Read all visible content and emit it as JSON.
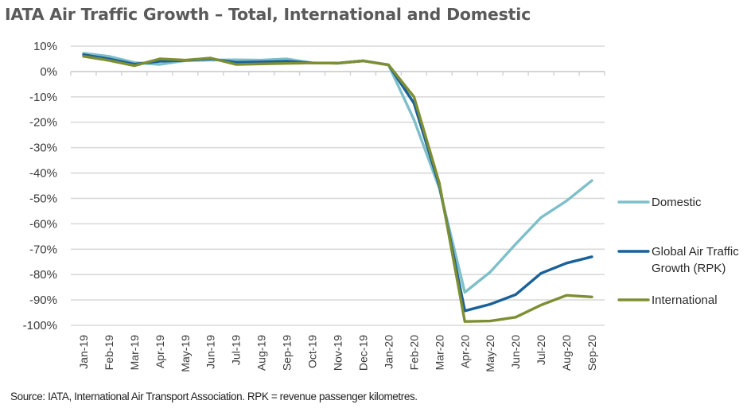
{
  "chart_data": {
    "type": "line",
    "title": "IATA Air Traffic Growth  – Total, International  and Domestic",
    "xlabel": "",
    "ylabel": "",
    "ylim": [
      -100,
      10
    ],
    "yticks": [
      10,
      0,
      -10,
      -20,
      -30,
      -40,
      -50,
      -60,
      -70,
      -80,
      -90,
      -100
    ],
    "ytick_labels": [
      "10%",
      "0%",
      "-10%",
      "-20%",
      "-30%",
      "-40%",
      "-50%",
      "-60%",
      "-70%",
      "-80%",
      "-90%",
      "-100%"
    ],
    "grid": true,
    "legend_position": "right",
    "categories": [
      "Jan-19",
      "Feb-19",
      "Mar-19",
      "Apr-19",
      "May-19",
      "Jun-19",
      "Jul-19",
      "Aug-19",
      "Sep-19",
      "Oct-19",
      "Nov-19",
      "Dec-19",
      "Jan-20",
      "Feb-20",
      "Mar-20",
      "Apr-20",
      "May-20",
      "Jun-20",
      "Jul-20",
      "Aug-20",
      "Sep-20"
    ],
    "series": [
      {
        "name": "Domestic",
        "color": "#7fbfc9",
        "values": [
          7.2,
          6.0,
          3.5,
          2.8,
          4.3,
          4.5,
          4.6,
          4.5,
          5.0,
          3.4,
          3.3,
          4.2,
          2.6,
          -19.0,
          -46.0,
          -87.0,
          -79.0,
          -68.0,
          -57.5,
          -51.0,
          -43.0
        ]
      },
      {
        "name": "Global Air Traffic Growth (RPK)",
        "color": "#1a6199",
        "values": [
          6.6,
          5.0,
          2.9,
          4.0,
          4.4,
          5.0,
          3.6,
          3.8,
          4.0,
          3.4,
          3.3,
          4.2,
          2.6,
          -12.5,
          -45.0,
          -94.3,
          -91.7,
          -87.9,
          -79.5,
          -75.5,
          -73.0
        ]
      },
      {
        "name": "International",
        "color": "#7d8f32",
        "values": [
          6.0,
          4.4,
          2.3,
          5.0,
          4.5,
          5.3,
          2.8,
          3.0,
          3.2,
          3.4,
          3.3,
          4.2,
          2.6,
          -10.0,
          -44.0,
          -98.5,
          -98.3,
          -96.8,
          -92.0,
          -88.2,
          -88.8
        ]
      }
    ],
    "legend": [
      {
        "label_lines": [
          "Domestic"
        ],
        "series_index": 0
      },
      {
        "label_lines": [
          "Global Air Traffic",
          "Growth (RPK)"
        ],
        "series_index": 1
      },
      {
        "label_lines": [
          "International"
        ],
        "series_index": 2
      }
    ]
  },
  "source_note": "Source: IATA, International Air Transport Association. RPK = revenue passenger kilometres.",
  "colors": {
    "gridline": "#d9d9d9",
    "axis": "#d0d0d0",
    "title": "#5a5a5a"
  }
}
